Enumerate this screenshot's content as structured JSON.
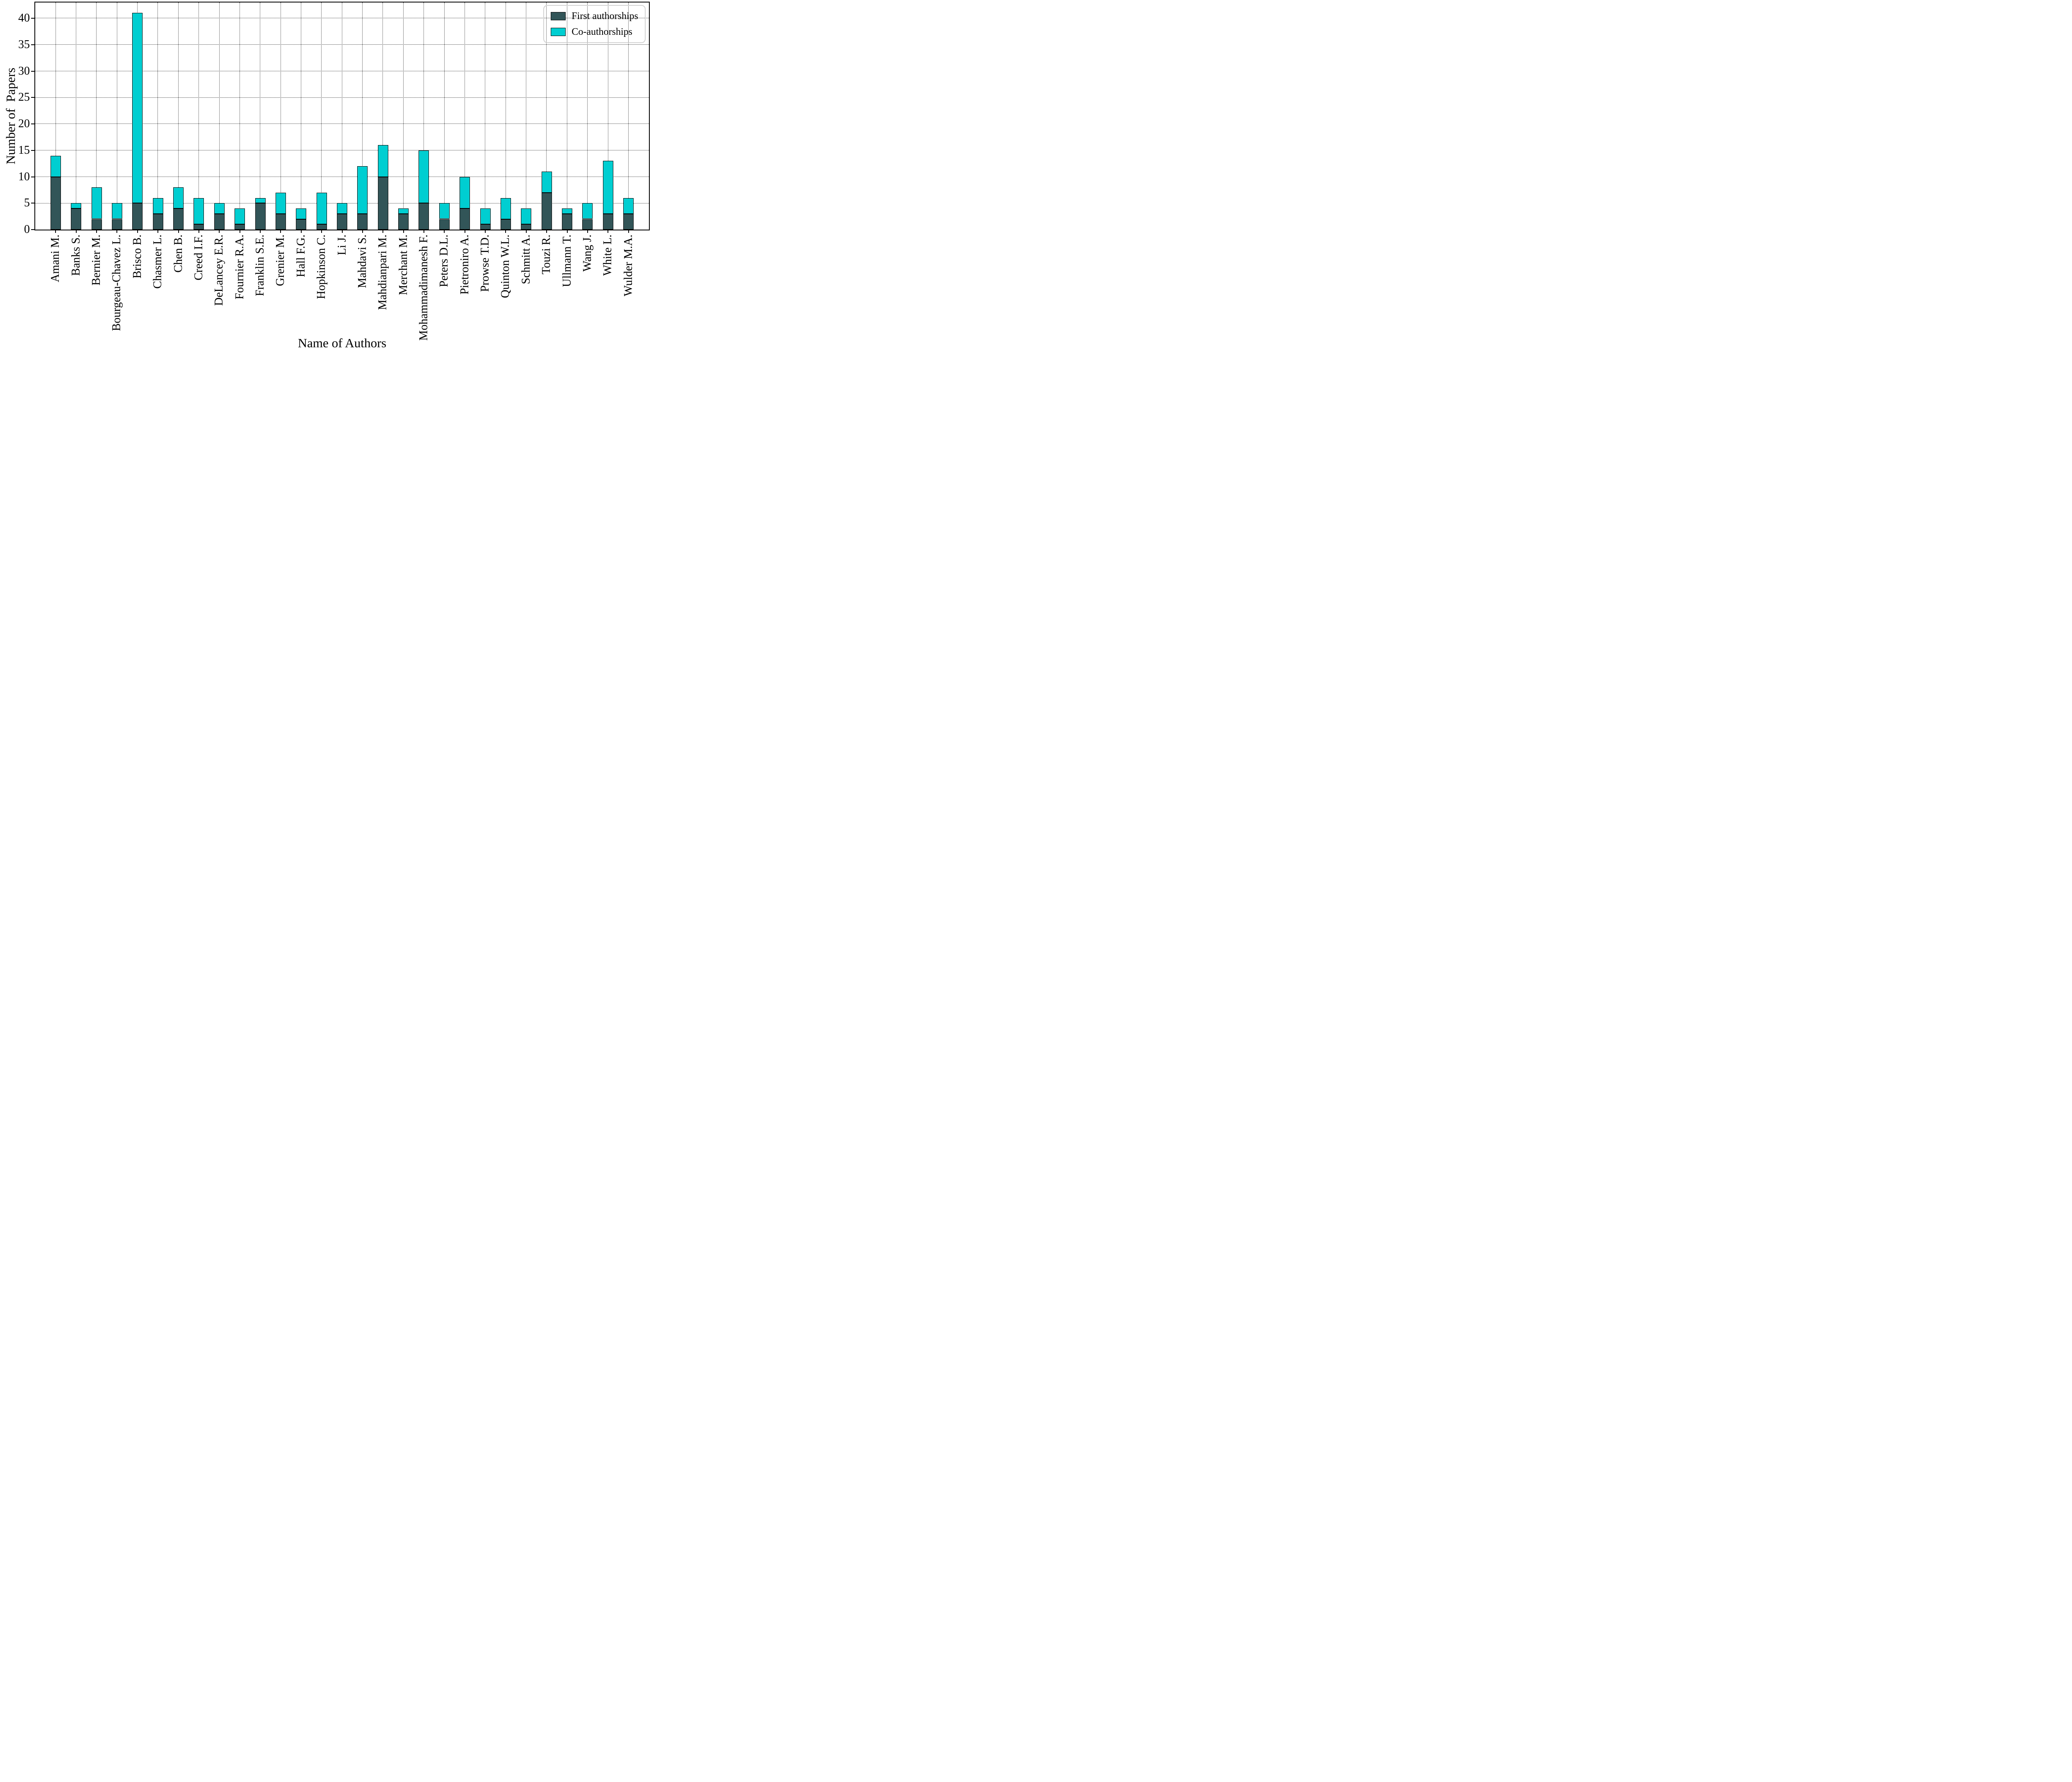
{
  "chart_data": {
    "type": "bar",
    "stacked": true,
    "title": "",
    "xlabel": "Name of Authors",
    "ylabel": "Number of  Papers",
    "categories": [
      "Amani M.",
      "Banks S.",
      "Bernier M.",
      "Bourgeau-Chavez L.",
      "Brisco B.",
      "Chasmer L.",
      "Chen B.",
      "Creed I.F.",
      "DeLancey E.R.",
      "Fournier R.A.",
      "Franklin S.E.",
      "Grenier M.",
      "Hall F.G.",
      "Hopkinson C.",
      "Li J.",
      "Mahdavi S.",
      "Mahdianpari M.",
      "Merchant M.",
      "Mohammadimanesh F.",
      "Peters D.L.",
      "Pietroniro A.",
      "Prowse T.D.",
      "Quinton W.L.",
      "Schmitt A.",
      "Touzi R.",
      "Ullmann T.",
      "Wang J.",
      "White L.",
      "Wulder M.A."
    ],
    "series": [
      {
        "name": "First authorships",
        "color": "#325558",
        "values": [
          10,
          4,
          2,
          2,
          5,
          3,
          4,
          1,
          3,
          1,
          5,
          3,
          2,
          1,
          3,
          3,
          10,
          3,
          5,
          2,
          4,
          1,
          2,
          1,
          7,
          3,
          2,
          3,
          3
        ]
      },
      {
        "name": "Co-authorships",
        "color": "#00CED1",
        "values": [
          4,
          1,
          6,
          3,
          36,
          3,
          4,
          5,
          2,
          3,
          1,
          4,
          2,
          6,
          2,
          9,
          6,
          1,
          10,
          3,
          6,
          3,
          4,
          3,
          4,
          1,
          3,
          10,
          3
        ]
      }
    ],
    "ylim": [
      0,
      43
    ],
    "yticks": [
      0,
      5,
      10,
      15,
      20,
      25,
      30,
      35,
      40
    ],
    "grid": "dotted",
    "legend_position": "upper right",
    "bar_edge_color": "#000000"
  }
}
